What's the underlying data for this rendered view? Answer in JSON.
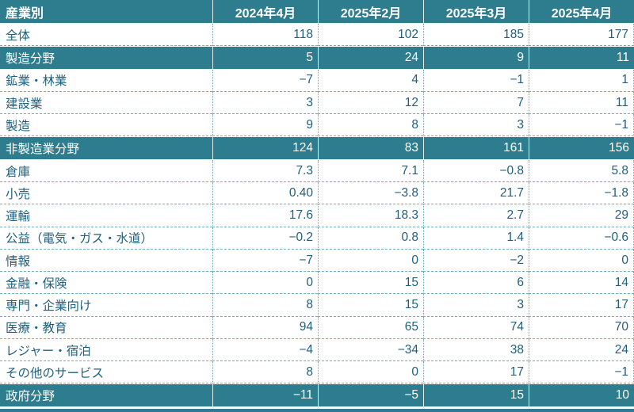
{
  "colors": {
    "accent_teal": "#2D7D8F",
    "text_dark_teal": "#1F5F7E",
    "grid_light_teal": "#74ACC4",
    "header_text": "#FFFFFF",
    "row_background": "#FFFFFF"
  },
  "chart_data": {
    "type": "table",
    "columns": [
      "産業別",
      "2024年4月",
      "2025年2月",
      "2025年3月",
      "2025年4月"
    ],
    "rows": [
      {
        "label": "全体",
        "highlight": false,
        "values": [
          "118",
          "102",
          "185",
          "177"
        ]
      },
      {
        "label": "製造分野",
        "highlight": true,
        "values": [
          "5",
          "24",
          "9",
          "11"
        ]
      },
      {
        "label": "鉱業・林業",
        "highlight": false,
        "values": [
          "−7",
          "4",
          "−1",
          "1"
        ]
      },
      {
        "label": "建設業",
        "highlight": false,
        "values": [
          "3",
          "12",
          "7",
          "11"
        ]
      },
      {
        "label": "製造",
        "highlight": false,
        "values": [
          "9",
          "8",
          "3",
          "−1"
        ]
      },
      {
        "label": "非製造業分野",
        "highlight": true,
        "values": [
          "124",
          "83",
          "161",
          "156"
        ]
      },
      {
        "label": "倉庫",
        "highlight": false,
        "values": [
          "7.3",
          "7.1",
          "−0.8",
          "5.8"
        ]
      },
      {
        "label": "小売",
        "highlight": false,
        "values": [
          "0.40",
          "−3.8",
          "21.7",
          "−1.8"
        ]
      },
      {
        "label": "運輸",
        "highlight": false,
        "values": [
          "17.6",
          "18.3",
          "2.7",
          "29"
        ]
      },
      {
        "label": "公益（電気・ガス・水道）",
        "highlight": false,
        "values": [
          "−0.2",
          "0.8",
          "1.4",
          "−0.6"
        ]
      },
      {
        "label": "情報",
        "highlight": false,
        "values": [
          "−7",
          "0",
          "−2",
          "0"
        ]
      },
      {
        "label": "金融・保険",
        "highlight": false,
        "values": [
          "0",
          "15",
          "6",
          "14"
        ]
      },
      {
        "label": "専門・企業向け",
        "highlight": false,
        "values": [
          "8",
          "15",
          "3",
          "17"
        ]
      },
      {
        "label": "医療・教育",
        "highlight": false,
        "values": [
          "94",
          "65",
          "74",
          "70"
        ]
      },
      {
        "label": "レジャー・宿泊",
        "highlight": false,
        "values": [
          "−4",
          "−34",
          "38",
          "24"
        ]
      },
      {
        "label": "その他のサービス",
        "highlight": false,
        "values": [
          "8",
          "0",
          "17",
          "−1"
        ]
      },
      {
        "label": "政府分野",
        "highlight": true,
        "values": [
          "−11",
          "−5",
          "15",
          "10"
        ]
      }
    ]
  }
}
